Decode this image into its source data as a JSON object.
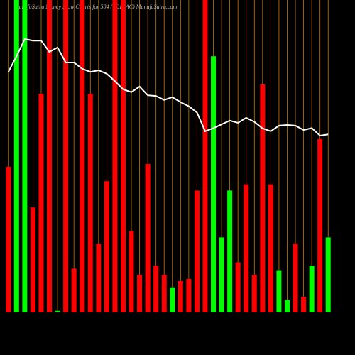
{
  "chart_data": {
    "type": "bar",
    "title": "MunafaSutra Money Flow Charts for 504 (ZODIAC) MunafaSutra.com",
    "ylim": [
      0,
      100
    ],
    "grid_color": "#c87800",
    "line_color": "#ffffff",
    "series": [
      {
        "name": "Money Flow",
        "values": [
          46.6,
          100,
          100,
          33.6,
          70,
          100,
          0.5,
          100,
          14,
          100,
          70,
          22,
          42,
          100,
          100,
          26,
          12,
          47.5,
          15,
          12,
          8,
          10,
          10.7,
          39,
          100,
          82,
          24,
          39,
          16,
          41,
          12,
          73,
          41,
          13.5,
          4,
          22,
          5,
          15,
          55.5,
          24
        ],
        "colors": [
          "#ff0000",
          "#00ff00",
          "#00ff00",
          "#ff0000",
          "#ff0000",
          "#ff0000",
          "#00ff00",
          "#ff0000",
          "#ff0000",
          "#ff0000",
          "#ff0000",
          "#ff0000",
          "#ff0000",
          "#ff0000",
          "#ff0000",
          "#ff0000",
          "#ff0000",
          "#ff0000",
          "#ff0000",
          "#ff0000",
          "#00ff00",
          "#ff0000",
          "#ff0000",
          "#ff0000",
          "#ff0000",
          "#00ff00",
          "#00ff00",
          "#00ff00",
          "#ff0000",
          "#ff0000",
          "#ff0000",
          "#ff0000",
          "#ff0000",
          "#00ff00",
          "#00ff00",
          "#ff0000",
          "#ff0000",
          "#00ff00",
          "#ff0000",
          "#00ff00"
        ]
      },
      {
        "name": "Price",
        "values": [
          77,
          82,
          87.5,
          87,
          87,
          83.4,
          84.8,
          80,
          80,
          78,
          77,
          77.5,
          76.4,
          74,
          71.4,
          70.5,
          72.3,
          69.5,
          69.3,
          68,
          68.9,
          67.3,
          66,
          64,
          58,
          59,
          60.2,
          61.4,
          60.7,
          62.3,
          61,
          58.9,
          58,
          59.8,
          60,
          59.8,
          58.4,
          59,
          56.6,
          57
        ]
      }
    ]
  }
}
